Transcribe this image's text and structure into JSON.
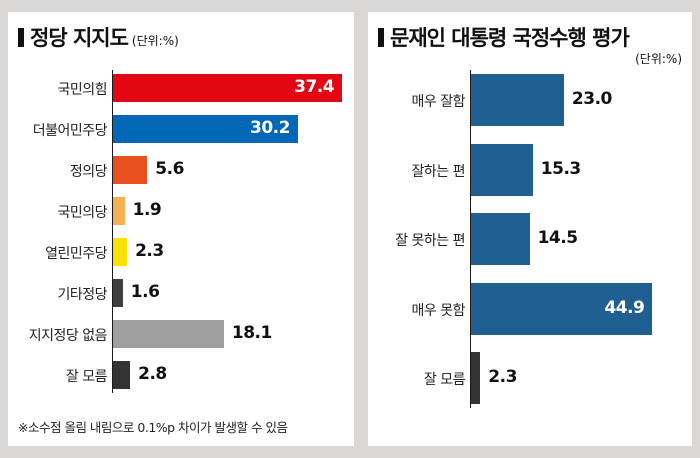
{
  "left_panel": {
    "title": "정당 지지도",
    "unit": "(단위:%)",
    "note": "※소수점 올림 내림으로 0.1%p 차이가 발생할 수 있음"
  },
  "right_panel": {
    "title": "문재인 대통령 국정수행 평가",
    "unit": "(단위:%)"
  },
  "colors": {
    "ppp": "#e30613",
    "dp": "#0068b7",
    "justice": "#e8501e",
    "peoples": "#f4b053",
    "open": "#fde103",
    "other": "#3f3f3f",
    "none": "#9f9f9f",
    "dontknow": "#333333",
    "approval": "#1f5f92"
  },
  "chart_data": [
    {
      "type": "bar",
      "orientation": "horizontal",
      "title": "정당 지지도",
      "unit": "(단위:%)",
      "xlim": [
        0,
        40
      ],
      "grid": false,
      "categories": [
        "국민의힘",
        "더불어민주당",
        "정의당",
        "국민의당",
        "열린민주당",
        "기타정당",
        "지지정당 없음",
        "잘 모름"
      ],
      "values": [
        37.4,
        30.2,
        5.6,
        1.9,
        2.3,
        1.6,
        18.1,
        2.8
      ],
      "labels": [
        "37.4",
        "30.2",
        "5.6",
        "1.9",
        "2.3",
        "1.6",
        "18.1",
        "2.8"
      ],
      "colors": [
        "#e30613",
        "#0068b7",
        "#e8501e",
        "#f4b053",
        "#fde103",
        "#3f3f3f",
        "#9f9f9f",
        "#333333"
      ],
      "inside_label": [
        true,
        true,
        false,
        false,
        false,
        false,
        false,
        false
      ]
    },
    {
      "type": "bar",
      "orientation": "horizontal",
      "title": "문재인 대통령 국정수행 평가",
      "unit": "(단위:%)",
      "xlim": [
        0,
        50
      ],
      "grid": false,
      "categories": [
        "매우 잘함",
        "잘하는 편",
        "잘 못하는 편",
        "매우 못함",
        "잘 모름"
      ],
      "values": [
        23.0,
        15.3,
        14.5,
        44.9,
        2.3
      ],
      "labels": [
        "23.0",
        "15.3",
        "14.5",
        "44.9",
        "2.3"
      ],
      "colors": [
        "#1f5f92",
        "#1f5f92",
        "#1f5f92",
        "#1f5f92",
        "#333333"
      ],
      "inside_label": [
        false,
        false,
        false,
        true,
        false
      ]
    }
  ]
}
